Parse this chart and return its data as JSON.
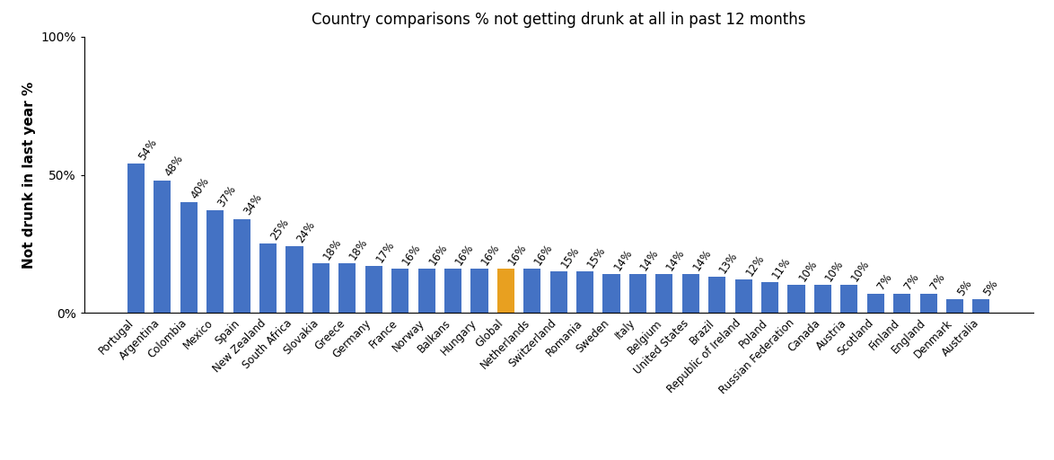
{
  "title": "Country comparisons % not getting drunk at all in past 12 months",
  "ylabel": "Not drunk in last year %",
  "categories": [
    "Portugal",
    "Argentina",
    "Colombia",
    "Mexico",
    "Spain",
    "New Zealand",
    "South Africa",
    "Slovakia",
    "Greece",
    "Germany",
    "France",
    "Norway",
    "Balkans",
    "Hungary",
    "Global",
    "Netherlands",
    "Switzerland",
    "Romania",
    "Sweden",
    "Italy",
    "Belgium",
    "United States",
    "Brazil",
    "Republic of Ireland",
    "Poland",
    "Russian Federation",
    "Canada",
    "Austria",
    "Scotland",
    "Finland",
    "England",
    "Denmark",
    "Australia"
  ],
  "values": [
    54,
    48,
    40,
    37,
    34,
    25,
    24,
    18,
    18,
    17,
    16,
    16,
    16,
    16,
    16,
    16,
    15,
    15,
    14,
    14,
    14,
    14,
    13,
    12,
    11,
    10,
    10,
    10,
    7,
    7,
    7,
    5,
    5
  ],
  "highlight_index": 14,
  "bar_color": "#4472C4",
  "highlight_color": "#E8A020",
  "background_color": "#FFFFFF",
  "ylim": [
    0,
    100
  ],
  "yticks": [
    0,
    50,
    100
  ],
  "ytick_labels": [
    "0%",
    "50%",
    "100%"
  ],
  "title_fontsize": 12,
  "label_fontsize": 8.5,
  "ylabel_fontsize": 11,
  "xtick_fontsize": 8.5,
  "label_rotation": 55
}
